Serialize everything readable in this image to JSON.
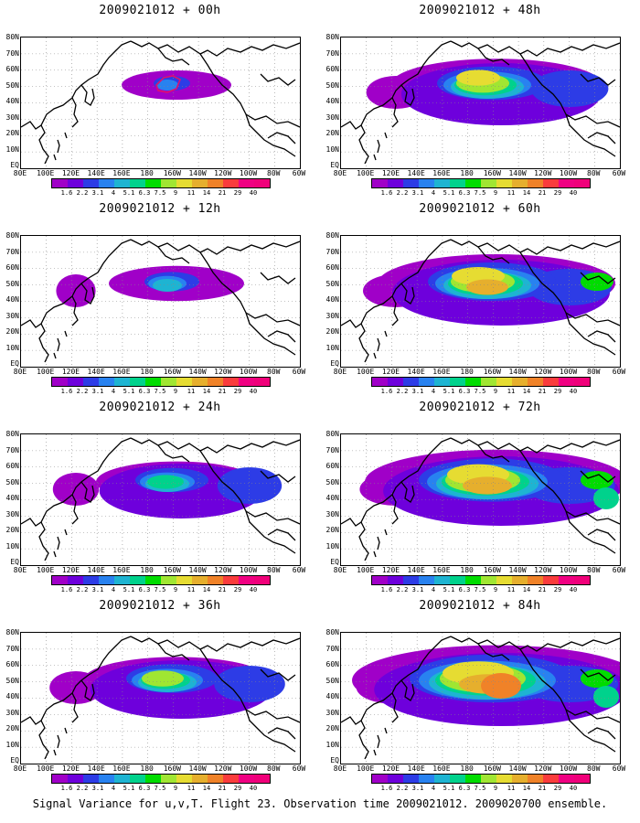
{
  "panels": [
    {
      "title": "2009021012 + 00h",
      "level": 0
    },
    {
      "title": "2009021012 + 48h",
      "level": 4
    },
    {
      "title": "2009021012 + 12h",
      "level": 1
    },
    {
      "title": "2009021012 + 60h",
      "level": 5
    },
    {
      "title": "2009021012 + 24h",
      "level": 2
    },
    {
      "title": "2009021012 + 72h",
      "level": 6
    },
    {
      "title": "2009021012 + 36h",
      "level": 3
    },
    {
      "title": "2009021012 + 84h",
      "level": 7
    }
  ],
  "lat_labels": [
    "80N",
    "70N",
    "60N",
    "50N",
    "40N",
    "30N",
    "20N",
    "10N",
    "EQ"
  ],
  "lon_labels": [
    "80E",
    "100E",
    "120E",
    "140E",
    "160E",
    "180",
    "160W",
    "140W",
    "120W",
    "100W",
    "80W",
    "60W"
  ],
  "colorbar": {
    "labels": [
      "1.6",
      "2.2",
      "3.1",
      "4",
      "5.1",
      "6.3",
      "7.5",
      "9",
      "11",
      "14",
      "21",
      "29",
      "40"
    ],
    "colors": [
      "#a000c8",
      "#6e00dc",
      "#2d3ce6",
      "#2882f0",
      "#1eb4d2",
      "#00d28c",
      "#00dc00",
      "#a0e632",
      "#e6dc32",
      "#e6af2d",
      "#f08228",
      "#fa3c3c",
      "#f00082"
    ]
  },
  "footer": "Signal Variance for u,v,T. Flight 23. Observation time 2009021012. 2009020700 ensemble."
}
